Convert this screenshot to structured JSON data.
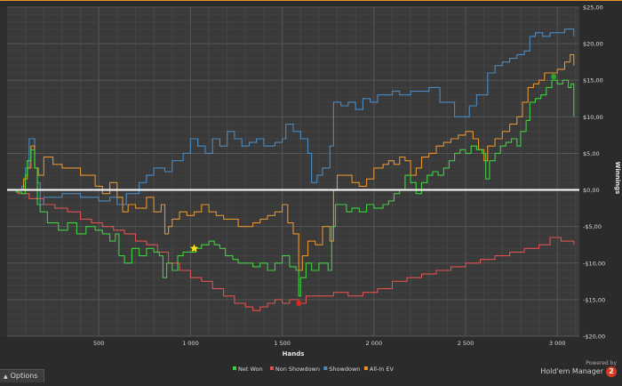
{
  "chart_data": {
    "type": "line",
    "xlabel": "Hands",
    "ylabel": "Winnings",
    "xlim": [
      0,
      3120
    ],
    "ylim": [
      -20,
      25
    ],
    "x_ticks": [
      500,
      1000,
      1500,
      2000,
      2500,
      3000
    ],
    "x_tick_labels": [
      "500",
      "1 000",
      "1 500",
      "2 000",
      "2 500",
      "3 000"
    ],
    "y_ticks": [
      -20,
      -15,
      -10,
      -5,
      0,
      5,
      10,
      15,
      20,
      25
    ],
    "y_tick_labels": [
      "-$20,00",
      "-$15,00",
      "-$10,00",
      "-$5,00",
      "$0,00",
      "$5,00",
      "$10,00",
      "$15,00",
      "$20,00",
      "$25,00"
    ],
    "grid": true,
    "legend_position": "bottom-center",
    "zero_line_color": "#ffffff",
    "series": [
      {
        "name": "Net Won",
        "color": "#3fd13f",
        "points": [
          [
            0,
            0
          ],
          [
            50,
            -0.3
          ],
          [
            80,
            -0.5
          ],
          [
            100,
            2
          ],
          [
            110,
            4
          ],
          [
            130,
            5.5
          ],
          [
            150,
            3
          ],
          [
            165,
            -2
          ],
          [
            180,
            -3
          ],
          [
            220,
            -4.5
          ],
          [
            280,
            -5.5
          ],
          [
            330,
            -4.5
          ],
          [
            380,
            -6
          ],
          [
            430,
            -5
          ],
          [
            480,
            -5.5
          ],
          [
            520,
            -6
          ],
          [
            560,
            -7
          ],
          [
            590,
            -6
          ],
          [
            610,
            -9
          ],
          [
            640,
            -10
          ],
          [
            680,
            -8
          ],
          [
            720,
            -9
          ],
          [
            760,
            -8
          ],
          [
            800,
            -8.5
          ],
          [
            830,
            -9
          ],
          [
            850,
            -12
          ],
          [
            870,
            -10
          ],
          [
            900,
            -11
          ],
          [
            930,
            -9
          ],
          [
            960,
            -8.5
          ],
          [
            990,
            -8.5
          ],
          [
            1030,
            -8
          ],
          [
            1060,
            -7.5
          ],
          [
            1100,
            -7
          ],
          [
            1130,
            -7.5
          ],
          [
            1160,
            -8
          ],
          [
            1190,
            -9
          ],
          [
            1230,
            -9.5
          ],
          [
            1260,
            -10
          ],
          [
            1300,
            -10
          ],
          [
            1340,
            -10.5
          ],
          [
            1380,
            -10
          ],
          [
            1420,
            -11
          ],
          [
            1460,
            -10
          ],
          [
            1500,
            -9
          ],
          [
            1540,
            -10.5
          ],
          [
            1575,
            -11
          ],
          [
            1590,
            -14.5
          ],
          [
            1600,
            -12
          ],
          [
            1630,
            -10
          ],
          [
            1660,
            -11
          ],
          [
            1700,
            -10
          ],
          [
            1750,
            -11
          ],
          [
            1770,
            -5
          ],
          [
            1790,
            -2
          ],
          [
            1820,
            -2
          ],
          [
            1850,
            -3
          ],
          [
            1880,
            -2.5
          ],
          [
            1920,
            -3
          ],
          [
            1960,
            -2
          ],
          [
            2000,
            -2.5
          ],
          [
            2050,
            -2
          ],
          [
            2080,
            -1.5
          ],
          [
            2110,
            -0.5
          ],
          [
            2140,
            0
          ],
          [
            2170,
            2
          ],
          [
            2200,
            1
          ],
          [
            2230,
            -0.5
          ],
          [
            2260,
            1
          ],
          [
            2290,
            2
          ],
          [
            2320,
            2.5
          ],
          [
            2350,
            2
          ],
          [
            2380,
            3
          ],
          [
            2410,
            4
          ],
          [
            2440,
            5
          ],
          [
            2470,
            5.5
          ],
          [
            2500,
            5
          ],
          [
            2530,
            6
          ],
          [
            2560,
            5.5
          ],
          [
            2590,
            5
          ],
          [
            2610,
            1.5
          ],
          [
            2630,
            4
          ],
          [
            2660,
            5
          ],
          [
            2690,
            6
          ],
          [
            2720,
            6.5
          ],
          [
            2750,
            7
          ],
          [
            2780,
            6
          ],
          [
            2800,
            8
          ],
          [
            2830,
            9.5
          ],
          [
            2850,
            12
          ],
          [
            2880,
            12.5
          ],
          [
            2910,
            13
          ],
          [
            2940,
            14
          ],
          [
            2970,
            15
          ],
          [
            3000,
            14.5
          ],
          [
            3030,
            15
          ],
          [
            3060,
            14
          ],
          [
            3075,
            14.5
          ],
          [
            3090,
            10
          ]
        ]
      },
      {
        "name": "Non Showdown",
        "color": "#e05252",
        "points": [
          [
            0,
            0
          ],
          [
            60,
            -0.5
          ],
          [
            120,
            -1.2
          ],
          [
            200,
            -2
          ],
          [
            260,
            -2.5
          ],
          [
            330,
            -3
          ],
          [
            400,
            -4
          ],
          [
            460,
            -4.5
          ],
          [
            520,
            -5
          ],
          [
            580,
            -5.5
          ],
          [
            640,
            -6
          ],
          [
            700,
            -7
          ],
          [
            760,
            -7.5
          ],
          [
            820,
            -8.5
          ],
          [
            880,
            -10
          ],
          [
            940,
            -11
          ],
          [
            1000,
            -12
          ],
          [
            1060,
            -12.5
          ],
          [
            1120,
            -13.5
          ],
          [
            1180,
            -14.5
          ],
          [
            1240,
            -15.5
          ],
          [
            1300,
            -16
          ],
          [
            1340,
            -16.5
          ],
          [
            1380,
            -16
          ],
          [
            1420,
            -15.5
          ],
          [
            1460,
            -15
          ],
          [
            1500,
            -15.5
          ],
          [
            1540,
            -15
          ],
          [
            1590,
            -15.5
          ],
          [
            1630,
            -14.5
          ],
          [
            1700,
            -14.5
          ],
          [
            1780,
            -14
          ],
          [
            1860,
            -14.5
          ],
          [
            1940,
            -14
          ],
          [
            2020,
            -13.5
          ],
          [
            2100,
            -12.5
          ],
          [
            2180,
            -12
          ],
          [
            2260,
            -11.5
          ],
          [
            2340,
            -11
          ],
          [
            2420,
            -10.5
          ],
          [
            2500,
            -10
          ],
          [
            2580,
            -9.5
          ],
          [
            2660,
            -9
          ],
          [
            2740,
            -8.5
          ],
          [
            2820,
            -8
          ],
          [
            2900,
            -7.5
          ],
          [
            2960,
            -6.5
          ],
          [
            3020,
            -7
          ],
          [
            3090,
            -7.5
          ]
        ]
      },
      {
        "name": "Showdown",
        "color": "#4a8bc4",
        "points": [
          [
            0,
            0
          ],
          [
            80,
            0.5
          ],
          [
            100,
            3
          ],
          [
            120,
            7
          ],
          [
            145,
            7
          ],
          [
            150,
            3
          ],
          [
            165,
            1
          ],
          [
            180,
            -2
          ],
          [
            200,
            -1
          ],
          [
            300,
            -0.5
          ],
          [
            400,
            -1
          ],
          [
            500,
            -1.5
          ],
          [
            560,
            -1
          ],
          [
            600,
            -2
          ],
          [
            650,
            -0.5
          ],
          [
            720,
            1
          ],
          [
            760,
            2
          ],
          [
            800,
            3
          ],
          [
            860,
            2.5
          ],
          [
            900,
            4
          ],
          [
            960,
            5
          ],
          [
            1000,
            7
          ],
          [
            1040,
            6
          ],
          [
            1080,
            5
          ],
          [
            1120,
            7
          ],
          [
            1160,
            6
          ],
          [
            1200,
            8
          ],
          [
            1240,
            7
          ],
          [
            1280,
            6
          ],
          [
            1320,
            6.5
          ],
          [
            1360,
            7
          ],
          [
            1400,
            6
          ],
          [
            1460,
            6.5
          ],
          [
            1500,
            7
          ],
          [
            1520,
            9
          ],
          [
            1560,
            8
          ],
          [
            1600,
            7
          ],
          [
            1640,
            5
          ],
          [
            1660,
            1
          ],
          [
            1690,
            2
          ],
          [
            1720,
            3
          ],
          [
            1760,
            6
          ],
          [
            1780,
            12
          ],
          [
            1820,
            11.5
          ],
          [
            1860,
            12
          ],
          [
            1900,
            11
          ],
          [
            1940,
            12.5
          ],
          [
            1980,
            12
          ],
          [
            2020,
            13
          ],
          [
            2060,
            13
          ],
          [
            2100,
            13.5
          ],
          [
            2140,
            13
          ],
          [
            2200,
            13.5
          ],
          [
            2300,
            14
          ],
          [
            2360,
            12
          ],
          [
            2440,
            10
          ],
          [
            2480,
            10
          ],
          [
            2520,
            11.5
          ],
          [
            2560,
            13
          ],
          [
            2590,
            13
          ],
          [
            2620,
            16
          ],
          [
            2660,
            17
          ],
          [
            2700,
            17.5
          ],
          [
            2740,
            18
          ],
          [
            2780,
            18.5
          ],
          [
            2820,
            19
          ],
          [
            2850,
            21
          ],
          [
            2880,
            21.5
          ],
          [
            2920,
            21
          ],
          [
            2960,
            21.5
          ],
          [
            3000,
            21.5
          ],
          [
            3040,
            22
          ],
          [
            3080,
            22
          ],
          [
            3090,
            21
          ]
        ]
      },
      {
        "name": "All-In EV",
        "color": "#e6932e",
        "points": [
          [
            0,
            0
          ],
          [
            60,
            0
          ],
          [
            90,
            1.5
          ],
          [
            110,
            3
          ],
          [
            130,
            6
          ],
          [
            150,
            3
          ],
          [
            170,
            2
          ],
          [
            200,
            4.5
          ],
          [
            250,
            3.5
          ],
          [
            300,
            3
          ],
          [
            360,
            3
          ],
          [
            400,
            2
          ],
          [
            440,
            2
          ],
          [
            480,
            0.5
          ],
          [
            520,
            -0.5
          ],
          [
            560,
            1
          ],
          [
            600,
            -1
          ],
          [
            630,
            -3
          ],
          [
            660,
            -2
          ],
          [
            700,
            -2.5
          ],
          [
            760,
            -1
          ],
          [
            800,
            -3
          ],
          [
            840,
            -2
          ],
          [
            860,
            -6
          ],
          [
            880,
            -5
          ],
          [
            900,
            -4
          ],
          [
            940,
            -3
          ],
          [
            980,
            -3.5
          ],
          [
            1020,
            -3
          ],
          [
            1060,
            -2
          ],
          [
            1100,
            -3
          ],
          [
            1140,
            -3.5
          ],
          [
            1180,
            -4
          ],
          [
            1220,
            -4
          ],
          [
            1260,
            -5
          ],
          [
            1300,
            -5
          ],
          [
            1340,
            -4.5
          ],
          [
            1380,
            -4
          ],
          [
            1420,
            -3.5
          ],
          [
            1460,
            -3
          ],
          [
            1500,
            -2
          ],
          [
            1530,
            -4.5
          ],
          [
            1560,
            -6
          ],
          [
            1590,
            -11
          ],
          [
            1610,
            -9
          ],
          [
            1640,
            -7
          ],
          [
            1680,
            -7.5
          ],
          [
            1720,
            -5
          ],
          [
            1760,
            -7
          ],
          [
            1780,
            0
          ],
          [
            1800,
            2
          ],
          [
            1840,
            2
          ],
          [
            1880,
            1
          ],
          [
            1920,
            0.5
          ],
          [
            1960,
            1.5
          ],
          [
            2000,
            3
          ],
          [
            2050,
            3.5
          ],
          [
            2080,
            4
          ],
          [
            2110,
            3.5
          ],
          [
            2140,
            4.5
          ],
          [
            2170,
            4
          ],
          [
            2200,
            2
          ],
          [
            2230,
            3
          ],
          [
            2260,
            4.5
          ],
          [
            2300,
            5
          ],
          [
            2340,
            6
          ],
          [
            2380,
            6.5
          ],
          [
            2420,
            7
          ],
          [
            2460,
            7.5
          ],
          [
            2500,
            8
          ],
          [
            2540,
            7
          ],
          [
            2570,
            5.5
          ],
          [
            2600,
            4
          ],
          [
            2620,
            6
          ],
          [
            2660,
            7
          ],
          [
            2700,
            8
          ],
          [
            2740,
            9
          ],
          [
            2780,
            10
          ],
          [
            2810,
            12
          ],
          [
            2840,
            14
          ],
          [
            2870,
            14.5
          ],
          [
            2900,
            15
          ],
          [
            2930,
            16
          ],
          [
            2970,
            16
          ],
          [
            3000,
            16.5
          ],
          [
            3040,
            17.5
          ],
          [
            3070,
            18.5
          ],
          [
            3090,
            17
          ]
        ]
      }
    ],
    "markers": [
      {
        "name": "star",
        "color": "#ffe21a",
        "x": 1020,
        "y": -8
      },
      {
        "name": "green-dot",
        "color": "#2aa82a",
        "x": 2980,
        "y": 15.5
      },
      {
        "name": "red-dot",
        "color": "#d42a2a",
        "x": 1590,
        "y": -15.5
      }
    ]
  },
  "options_label": "Options",
  "brand": {
    "powered": "Powered by",
    "name": "Hold'em Manager",
    "version": "2"
  }
}
